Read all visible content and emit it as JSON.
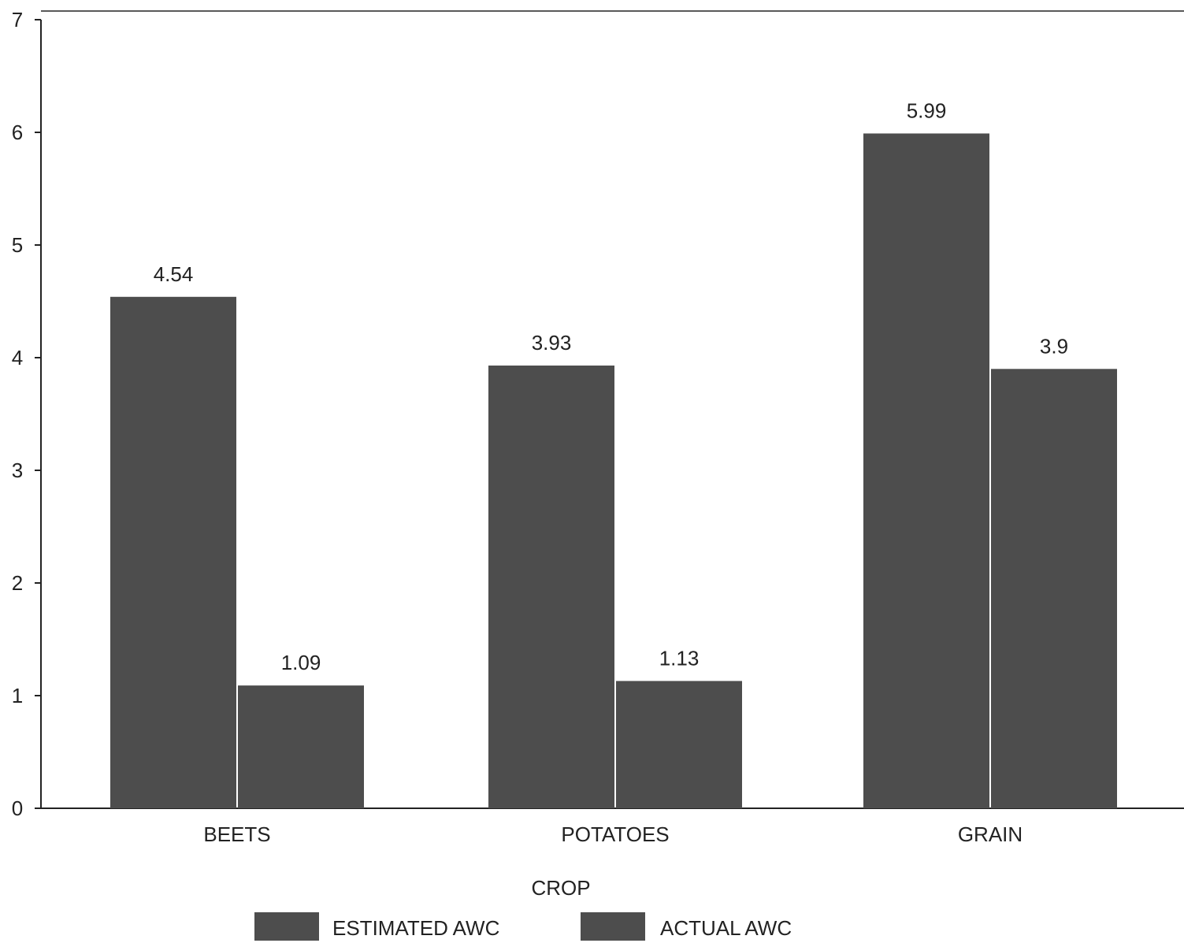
{
  "chart_data": {
    "type": "bar",
    "categories": [
      "BEETS",
      "POTATOES",
      "GRAIN"
    ],
    "series": [
      {
        "name": "ESTIMATED AWC",
        "values": [
          4.54,
          3.93,
          5.99
        ],
        "labels": [
          "4.54",
          "3.93",
          "5.99"
        ],
        "color": "#4d4d4d"
      },
      {
        "name": "ACTUAL AWC",
        "values": [
          1.09,
          1.13,
          3.9
        ],
        "labels": [
          "1.09",
          "1.13",
          "3.9"
        ],
        "color": "#4d4d4d"
      }
    ],
    "title": "",
    "xlabel": "CROP",
    "ylabel": "",
    "ylim": [
      0,
      7
    ],
    "yticks": [
      "0",
      "1",
      "2",
      "3",
      "4",
      "5",
      "6",
      "7"
    ],
    "grid": false,
    "legend_position": "bottom"
  }
}
